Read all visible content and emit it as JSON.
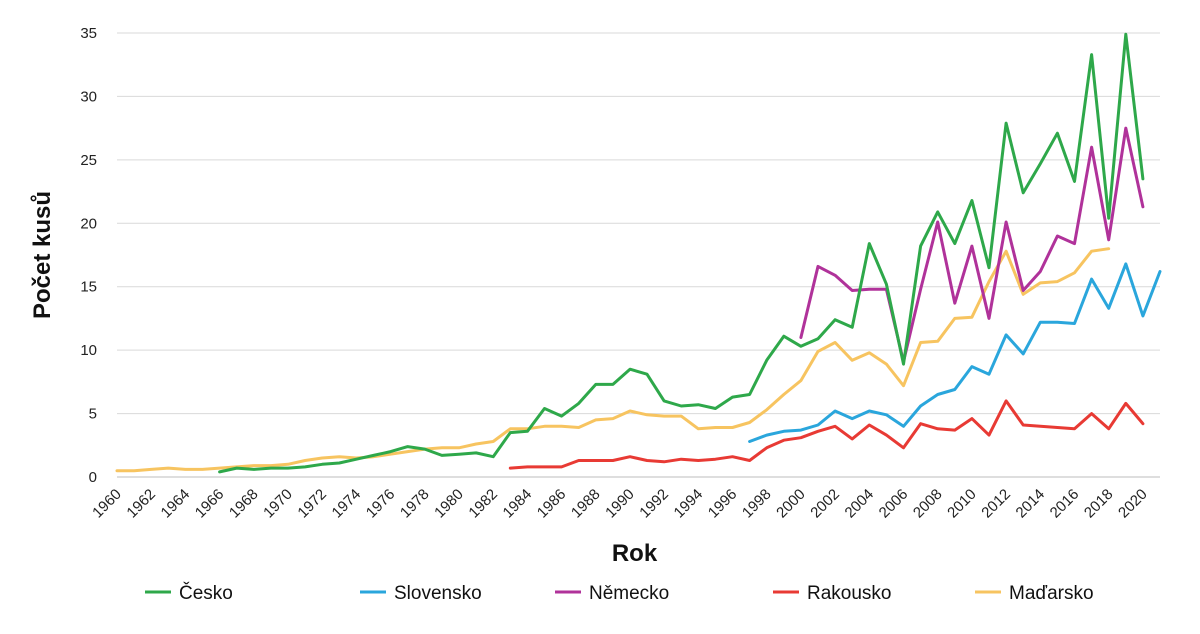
{
  "chart_data": {
    "type": "line",
    "title": "",
    "xlabel": "Rok",
    "ylabel": "Počet kusů",
    "xlim": [
      1960,
      2021
    ],
    "ylim": [
      0,
      35
    ],
    "yticks": [
      0,
      5,
      10,
      15,
      20,
      25,
      30,
      35
    ],
    "xticks": [
      1960,
      1962,
      1964,
      1966,
      1968,
      1970,
      1972,
      1974,
      1976,
      1978,
      1980,
      1982,
      1984,
      1986,
      1988,
      1990,
      1992,
      1994,
      1996,
      1998,
      2000,
      2002,
      2004,
      2006,
      2008,
      2010,
      2012,
      2014,
      2016,
      2018,
      2020
    ],
    "grid": "horizontal",
    "legend": "bottom",
    "series": [
      {
        "name": "Česko",
        "color": "#2ea84a",
        "x": [
          1966,
          1967,
          1968,
          1969,
          1970,
          1971,
          1972,
          1973,
          1974,
          1975,
          1976,
          1977,
          1978,
          1979,
          1980,
          1981,
          1982,
          1983,
          1984,
          1985,
          1986,
          1987,
          1988,
          1989,
          1990,
          1991,
          1992,
          1993,
          1994,
          1995,
          1996,
          1997,
          1998,
          1999,
          2000,
          2001,
          2002,
          2003,
          2004,
          2005,
          2006,
          2007,
          2008,
          2009,
          2010,
          2011,
          2012,
          2013,
          2014,
          2015,
          2016,
          2017,
          2018,
          2019,
          2020
        ],
        "y": [
          0.4,
          0.7,
          0.6,
          0.7,
          0.7,
          0.8,
          1.0,
          1.1,
          1.4,
          1.7,
          2.0,
          2.4,
          2.2,
          1.7,
          1.8,
          1.9,
          1.6,
          3.5,
          3.6,
          5.4,
          4.8,
          5.8,
          7.3,
          7.3,
          8.5,
          8.1,
          6.0,
          5.6,
          5.7,
          5.4,
          6.3,
          6.5,
          9.2,
          11.1,
          10.3,
          10.9,
          12.4,
          11.8,
          18.4,
          15.2,
          8.9,
          18.2,
          20.9,
          18.4,
          21.8,
          16.5,
          27.9,
          22.4,
          24.7,
          27.1,
          23.3,
          33.3,
          20.4,
          34.9,
          23.5
        ]
      },
      {
        "name": "Slovensko",
        "color": "#2aa6dc",
        "x": [
          1997,
          1998,
          1999,
          2000,
          2001,
          2002,
          2003,
          2004,
          2005,
          2006,
          2007,
          2008,
          2009,
          2010,
          2011,
          2012,
          2013,
          2014,
          2015,
          2016,
          2017,
          2018,
          2019,
          2020,
          2021
        ],
        "y": [
          2.8,
          3.3,
          3.6,
          3.7,
          4.1,
          5.2,
          4.6,
          5.2,
          4.9,
          4.0,
          5.6,
          6.5,
          6.9,
          8.7,
          8.1,
          11.2,
          9.7,
          12.2,
          12.2,
          12.1,
          15.6,
          13.3,
          16.8,
          12.7,
          16.2
        ]
      },
      {
        "name": "Německo",
        "color": "#b0329a",
        "x": [
          2000,
          2001,
          2002,
          2003,
          2004,
          2005,
          2006,
          2007,
          2008,
          2009,
          2010,
          2011,
          2012,
          2013,
          2014,
          2015,
          2016,
          2017,
          2018,
          2019,
          2020
        ],
        "y": [
          11.0,
          16.6,
          15.9,
          14.7,
          14.8,
          14.8,
          9.1,
          14.8,
          20.1,
          13.7,
          18.2,
          12.5,
          20.1,
          14.7,
          16.2,
          19.0,
          18.4,
          26.0,
          18.7,
          27.5,
          21.3
        ]
      },
      {
        "name": "Rakousko",
        "color": "#e83a34",
        "x": [
          1983,
          1984,
          1985,
          1986,
          1987,
          1988,
          1989,
          1990,
          1991,
          1992,
          1993,
          1994,
          1995,
          1996,
          1997,
          1998,
          1999,
          2000,
          2001,
          2002,
          2003,
          2004,
          2005,
          2006,
          2007,
          2008,
          2009,
          2010,
          2011,
          2012,
          2013,
          2014,
          2015,
          2016,
          2017,
          2018,
          2019,
          2020
        ],
        "y": [
          0.7,
          0.8,
          0.8,
          0.8,
          1.3,
          1.3,
          1.3,
          1.6,
          1.3,
          1.2,
          1.4,
          1.3,
          1.4,
          1.6,
          1.3,
          2.3,
          2.9,
          3.1,
          3.6,
          4.0,
          3.0,
          4.1,
          3.3,
          2.3,
          4.2,
          3.8,
          3.7,
          4.6,
          3.3,
          6.0,
          4.1,
          4.0,
          3.9,
          3.8,
          5.0,
          3.8,
          5.8,
          4.2
        ]
      },
      {
        "name": "Maďarsko",
        "color": "#f7c460",
        "x": [
          1960,
          1961,
          1962,
          1963,
          1964,
          1965,
          1966,
          1967,
          1968,
          1969,
          1970,
          1971,
          1972,
          1973,
          1974,
          1975,
          1976,
          1977,
          1978,
          1979,
          1980,
          1981,
          1982,
          1983,
          1984,
          1985,
          1986,
          1987,
          1988,
          1989,
          1990,
          1991,
          1992,
          1993,
          1994,
          1995,
          1996,
          1997,
          1998,
          1999,
          2000,
          2001,
          2002,
          2003,
          2004,
          2005,
          2006,
          2007,
          2008,
          2009,
          2010,
          2011,
          2012,
          2013,
          2014,
          2015,
          2016,
          2017,
          2018
        ],
        "y": [
          0.5,
          0.5,
          0.6,
          0.7,
          0.6,
          0.6,
          0.7,
          0.8,
          0.9,
          0.9,
          1.0,
          1.3,
          1.5,
          1.6,
          1.5,
          1.6,
          1.8,
          2.0,
          2.2,
          2.3,
          2.3,
          2.6,
          2.8,
          3.8,
          3.8,
          4.0,
          4.0,
          3.9,
          4.5,
          4.6,
          5.2,
          4.9,
          4.8,
          4.8,
          3.8,
          3.9,
          3.9,
          4.3,
          5.3,
          6.5,
          7.6,
          9.9,
          10.6,
          9.2,
          9.8,
          8.9,
          7.2,
          10.6,
          10.7,
          12.5,
          12.6,
          15.4,
          17.8,
          14.4,
          15.3,
          15.4,
          16.1,
          17.8,
          18.0
        ]
      }
    ]
  }
}
